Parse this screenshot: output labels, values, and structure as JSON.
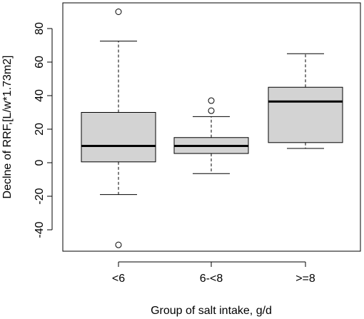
{
  "chart_data": {
    "type": "boxplot",
    "title": "",
    "xlabel": "Group of salt intake, g/d",
    "ylabel": "Declne of RRF,[L/w*1.73m2]",
    "ylim": [
      -53,
      96
    ],
    "yticks": [
      -40,
      -20,
      0,
      20,
      40,
      60,
      80
    ],
    "ytick_labels": [
      "-40",
      "-20",
      "0",
      "20",
      "40",
      "60",
      "80"
    ],
    "categories": [
      "<6",
      "6-<8",
      ">=8"
    ],
    "box_fill": "#d3d3d3",
    "line_color": "#000000",
    "groups": [
      {
        "category": "<6",
        "whisker_low": -19,
        "q1": 0.5,
        "median": 10,
        "q3": 30,
        "whisker_high": 72.5,
        "outliers": [
          90,
          -49
        ]
      },
      {
        "category": "6-<8",
        "whisker_low": -6.5,
        "q1": 5.5,
        "median": 10,
        "q3": 15,
        "whisker_high": 27.5,
        "outliers": [
          37,
          31
        ]
      },
      {
        "category": ">=8",
        "whisker_low": 8.5,
        "q1": 12,
        "median": 36.5,
        "q3": 45,
        "whisker_high": 65,
        "outliers": []
      }
    ]
  }
}
